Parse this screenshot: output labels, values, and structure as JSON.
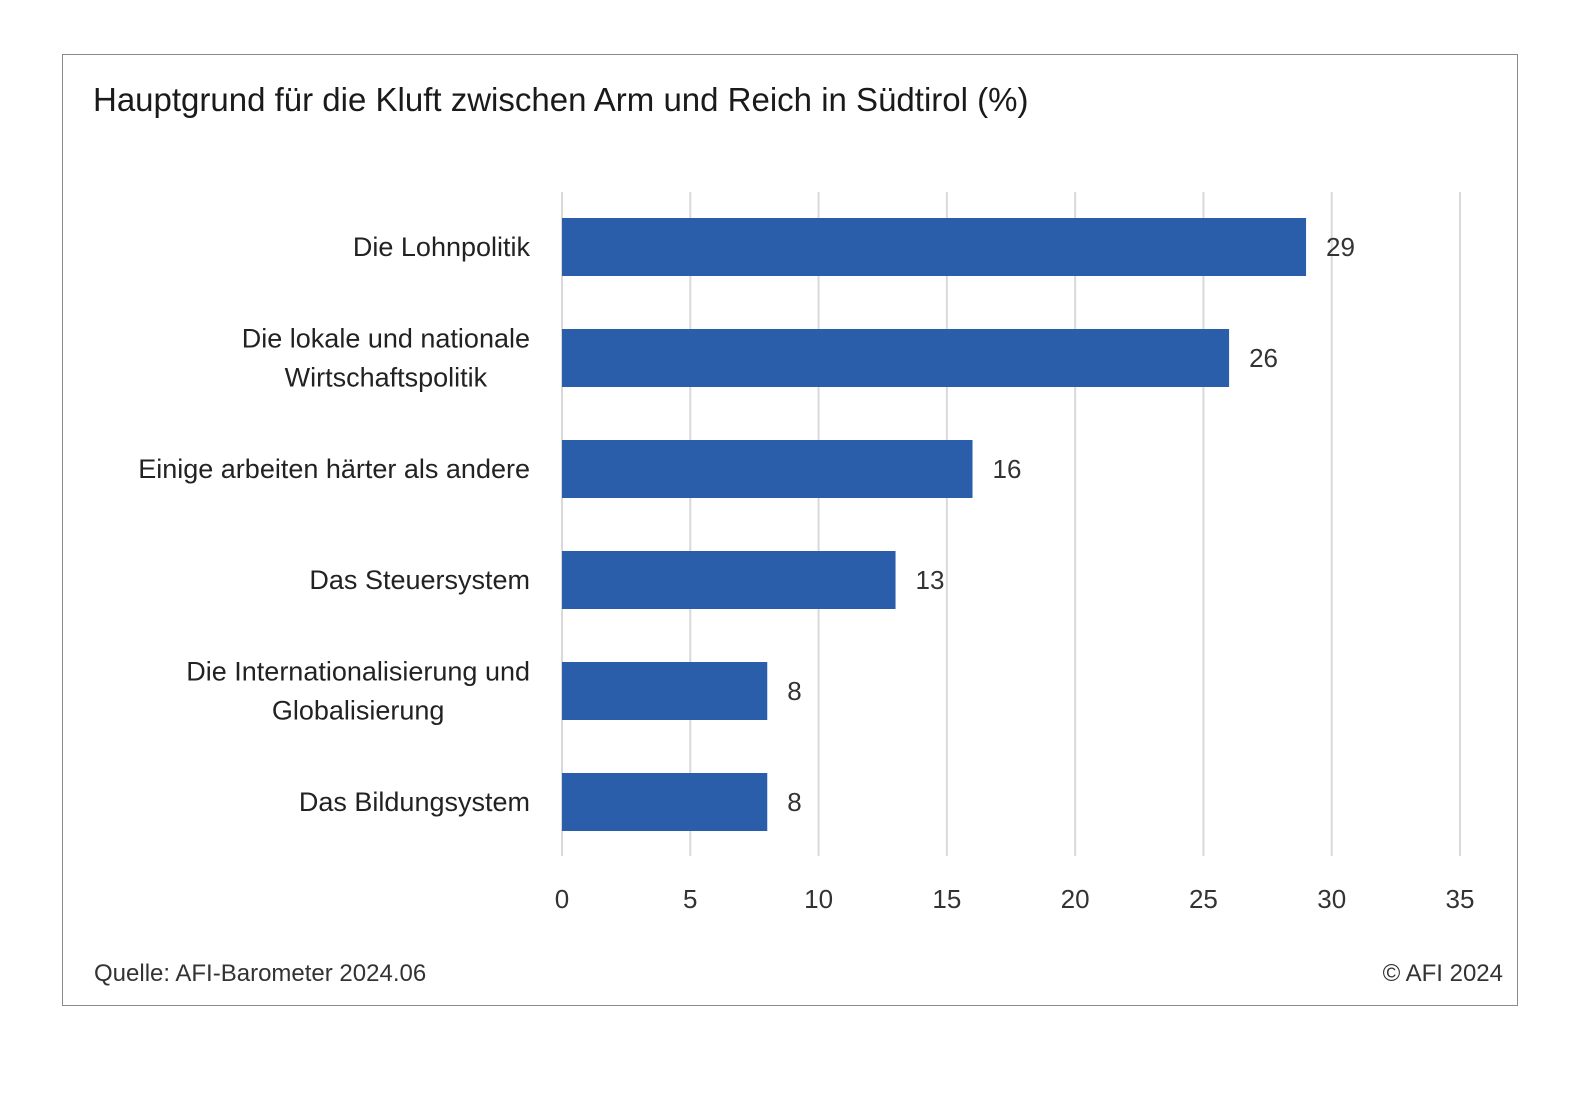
{
  "chart_data": {
    "type": "bar",
    "orientation": "horizontal",
    "title": "Hauptgrund für die Kluft zwischen Arm und Reich in Südtirol (%)",
    "categories": [
      [
        "Die Lohnpolitik"
      ],
      [
        "Die lokale und nationale",
        "Wirtschaftspolitik"
      ],
      [
        "Einige arbeiten härter als andere"
      ],
      [
        "Das Steuersystem"
      ],
      [
        "Die Internationalisierung und",
        "Globalisierung"
      ],
      [
        "Das Bildungsystem"
      ]
    ],
    "values": [
      29,
      26,
      16,
      13,
      8,
      8
    ],
    "data_labels": [
      "29",
      "26",
      "16",
      "13",
      "8",
      "8"
    ],
    "xlim": [
      0,
      35
    ],
    "xticks": [
      0,
      5,
      10,
      15,
      20,
      25,
      30,
      35
    ],
    "xtick_labels": [
      "0",
      "5",
      "10",
      "15",
      "20",
      "25",
      "30",
      "35"
    ],
    "xlabel": "",
    "ylabel": "",
    "grid": "vertical",
    "legend": "none"
  },
  "footer": {
    "source": "Quelle: AFI-Barometer 2024.06",
    "copyright": "© AFI 2024"
  },
  "colors": {
    "bar": "#2b5eaa",
    "grid": "#d9d9d9",
    "text": "#222222",
    "border": "#8a8a8a"
  }
}
